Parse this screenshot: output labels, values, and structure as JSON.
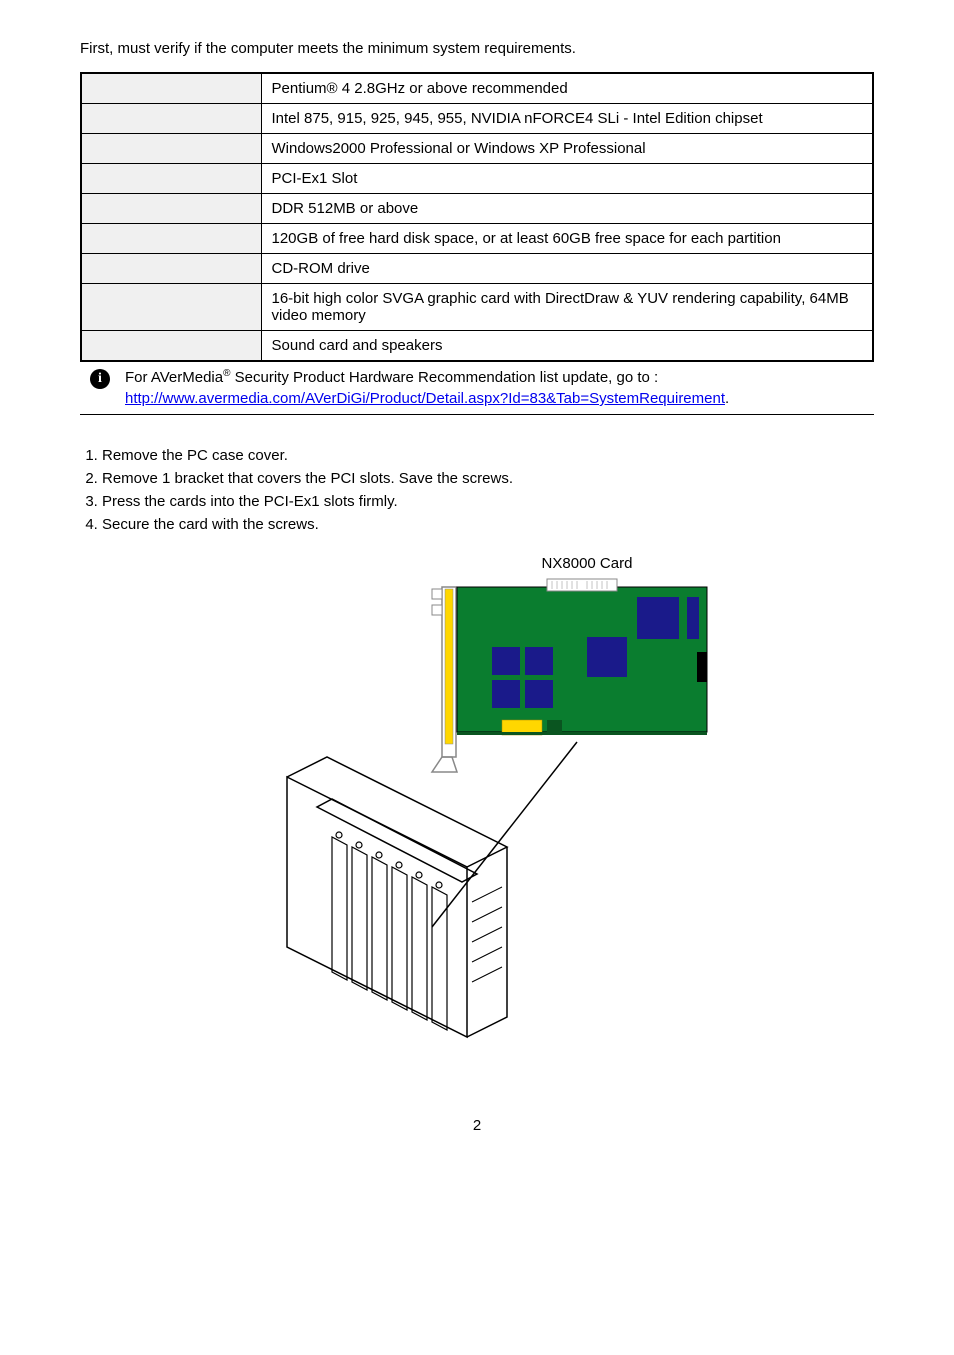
{
  "intro": "First, must verify if the computer meets the minimum system requirements.",
  "specs": {
    "rows": [
      {
        "value": "Pentium® 4 2.8GHz or above recommended"
      },
      {
        "value": "Intel 875, 915, 925, 945, 955, NVIDIA nFORCE4 SLi - Intel Edition chipset"
      },
      {
        "value": "Windows2000 Professional or Windows XP Professional"
      },
      {
        "value": "PCI-Ex1 Slot"
      },
      {
        "value": "DDR 512MB or above"
      },
      {
        "value": "120GB of free hard disk space, or at least 60GB free space for each partition"
      },
      {
        "value": "CD-ROM drive"
      },
      {
        "value": "16-bit high color SVGA graphic card with DirectDraw & YUV rendering capability, 64MB video memory"
      },
      {
        "value": "Sound card and speakers"
      }
    ]
  },
  "note": {
    "text_a": "For AVerMedia",
    "sup": "®",
    "text_b": " Security Product Hardware Recommendation list update, go to :",
    "link": "http://www.avermedia.com/AVerDiGi/Product/Detail.aspx?Id=83&Tab=SystemRequirement",
    "link_end": "."
  },
  "steps": [
    "Remove the PC case cover.",
    "Remove 1 bracket that covers the PCI slots. Save the screws.",
    "Press the cards into the PCI-Ex1 slots firmly.",
    "Secure the card with the screws."
  ],
  "card_label": "NX8000 Card",
  "page_number": "2",
  "diagram": {
    "card": {
      "bg": "#0a7d2f",
      "bracket_color": "#cccccc",
      "yellow": "#ffd700",
      "white": "#ffffff",
      "chip_dark": "#0a0a6b",
      "chip_blue": "#2020b0"
    },
    "case": {
      "line_color": "#000000"
    }
  }
}
